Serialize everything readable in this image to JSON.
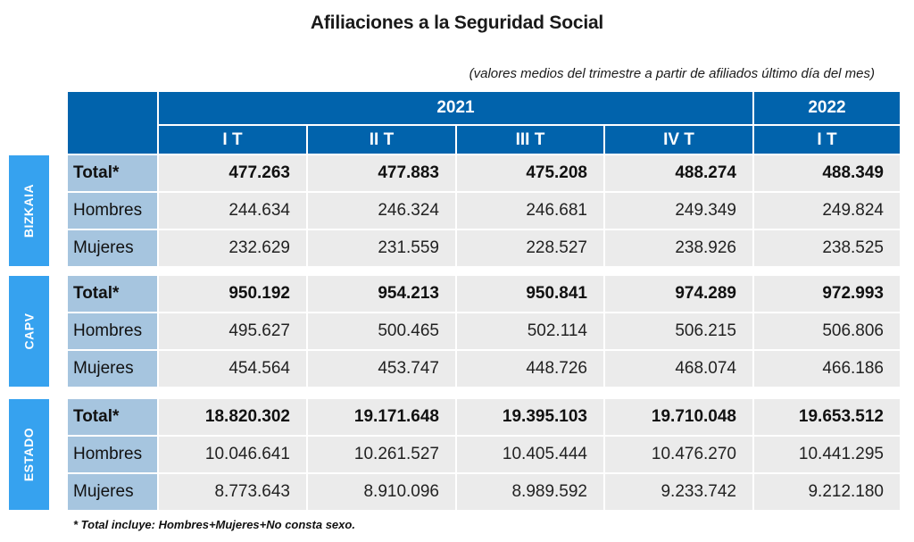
{
  "title": "Afiliaciones a la Seguridad Social",
  "subtitle": "(valores medios del trimestre a partir de afiliados último día del mes)",
  "header": {
    "years": [
      "2021",
      "2022"
    ],
    "quarters": [
      "I T",
      "II T",
      "III T",
      "IV T",
      "I T"
    ]
  },
  "groups": [
    {
      "name": "BIZKAIA",
      "rows": [
        {
          "label": "Total*",
          "values": [
            "477.263",
            "477.883",
            "475.208",
            "488.274",
            "488.349"
          ]
        },
        {
          "label": "Hombres",
          "values": [
            "244.634",
            "246.324",
            "246.681",
            "249.349",
            "249.824"
          ]
        },
        {
          "label": "Mujeres",
          "values": [
            "232.629",
            "231.559",
            "228.527",
            "238.926",
            "238.525"
          ]
        }
      ]
    },
    {
      "name": "CAPV",
      "rows": [
        {
          "label": "Total*",
          "values": [
            "950.192",
            "954.213",
            "950.841",
            "974.289",
            "972.993"
          ]
        },
        {
          "label": "Hombres",
          "values": [
            "495.627",
            "500.465",
            "502.114",
            "506.215",
            "506.806"
          ]
        },
        {
          "label": "Mujeres",
          "values": [
            "454.564",
            "453.747",
            "448.726",
            "468.074",
            "466.186"
          ]
        }
      ]
    },
    {
      "name": "ESTADO",
      "rows": [
        {
          "label": "Total*",
          "values": [
            "18.820.302",
            "19.171.648",
            "19.395.103",
            "19.710.048",
            "19.653.512"
          ]
        },
        {
          "label": "Hombres",
          "values": [
            "10.046.641",
            "10.261.527",
            "10.405.444",
            "10.476.270",
            "10.441.295"
          ]
        },
        {
          "label": "Mujeres",
          "values": [
            "8.773.643",
            "8.910.096",
            "8.989.592",
            "9.233.742",
            "9.212.180"
          ]
        }
      ]
    }
  ],
  "footnote": "* Total incluye: Hombres+Mujeres+No consta sexo.",
  "colors": {
    "header_blue": "#0163ac",
    "side_label_blue": "#36a2ef",
    "row_label_bg": "#a6c5df",
    "cell_bg": "#ebebeb"
  }
}
